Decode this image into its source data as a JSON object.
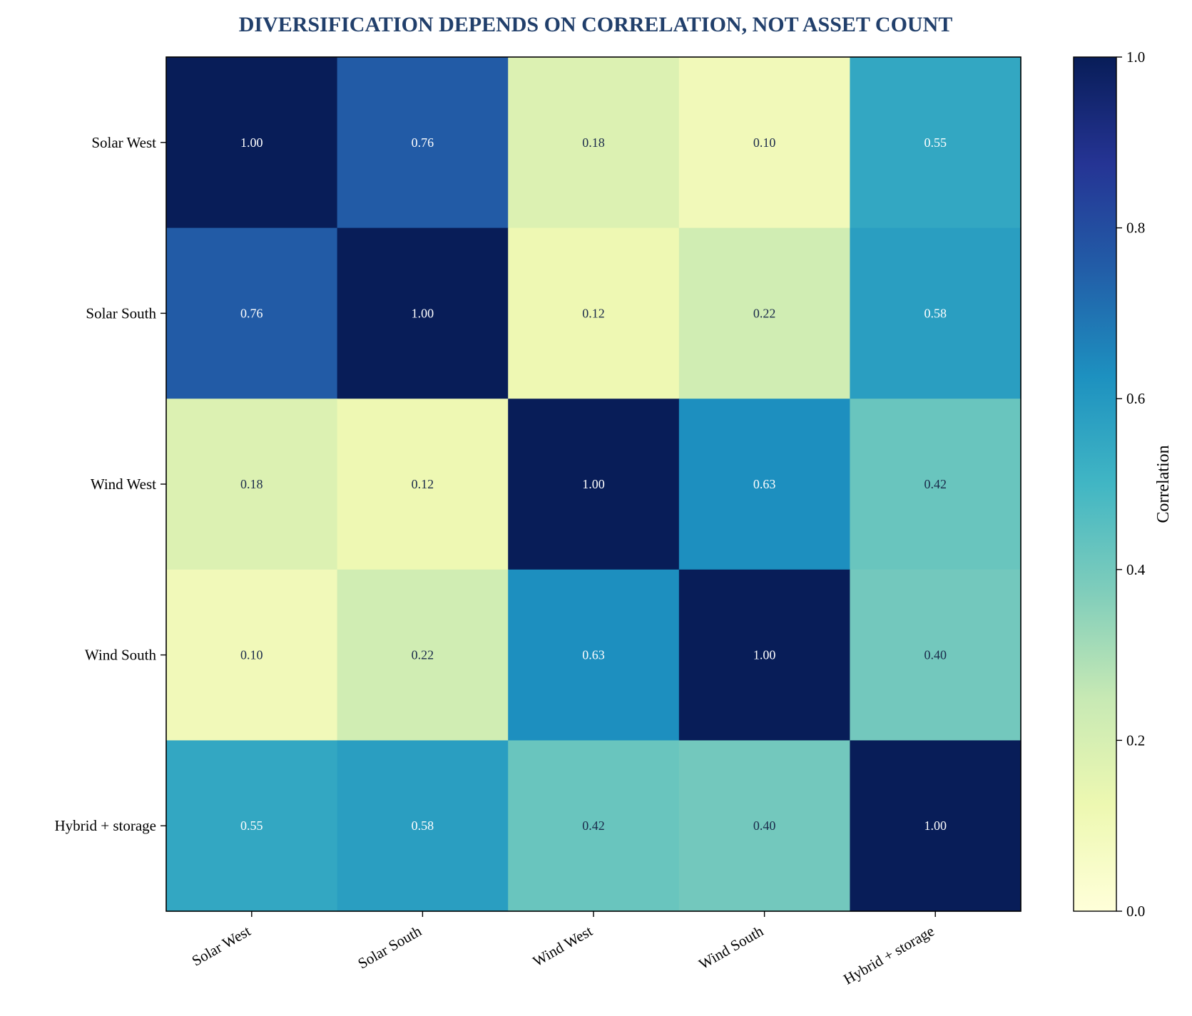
{
  "colors": {
    "title": "#213f6b",
    "axis": "#000000",
    "text_dark_bg": "#ffffff",
    "text_light_bg": "#1a2a4a",
    "colormap": "YlGnBu"
  },
  "chart_data": {
    "type": "heatmap",
    "title": "DIVERSIFICATION DEPENDS ON CORRELATION, NOT ASSET COUNT",
    "xlabel": "",
    "ylabel": "",
    "x_categories": [
      "Solar West",
      "Solar South",
      "Wind West",
      "Wind South",
      "Hybrid + storage"
    ],
    "y_categories": [
      "Solar West",
      "Solar South",
      "Wind West",
      "Wind South",
      "Hybrid + storage"
    ],
    "values": [
      [
        1.0,
        0.76,
        0.18,
        0.1,
        0.55
      ],
      [
        0.76,
        1.0,
        0.12,
        0.22,
        0.58
      ],
      [
        0.18,
        0.12,
        1.0,
        0.63,
        0.42
      ],
      [
        0.1,
        0.22,
        0.63,
        1.0,
        0.4
      ],
      [
        0.55,
        0.58,
        0.42,
        0.4,
        1.0
      ]
    ],
    "value_labels": [
      [
        "1.00",
        "0.76",
        "0.18",
        "0.10",
        "0.55"
      ],
      [
        "0.76",
        "1.00",
        "0.12",
        "0.22",
        "0.58"
      ],
      [
        "0.18",
        "0.12",
        "1.00",
        "0.63",
        "0.42"
      ],
      [
        "0.10",
        "0.22",
        "0.63",
        "1.00",
        "0.40"
      ],
      [
        "0.55",
        "0.58",
        "0.42",
        "0.40",
        "1.00"
      ]
    ],
    "colorbar": {
      "label": "Correlation",
      "range": [
        0.0,
        1.0
      ],
      "ticks": [
        "0.0",
        "0.2",
        "0.4",
        "0.6",
        "0.8",
        "1.0"
      ]
    },
    "grid": false
  }
}
